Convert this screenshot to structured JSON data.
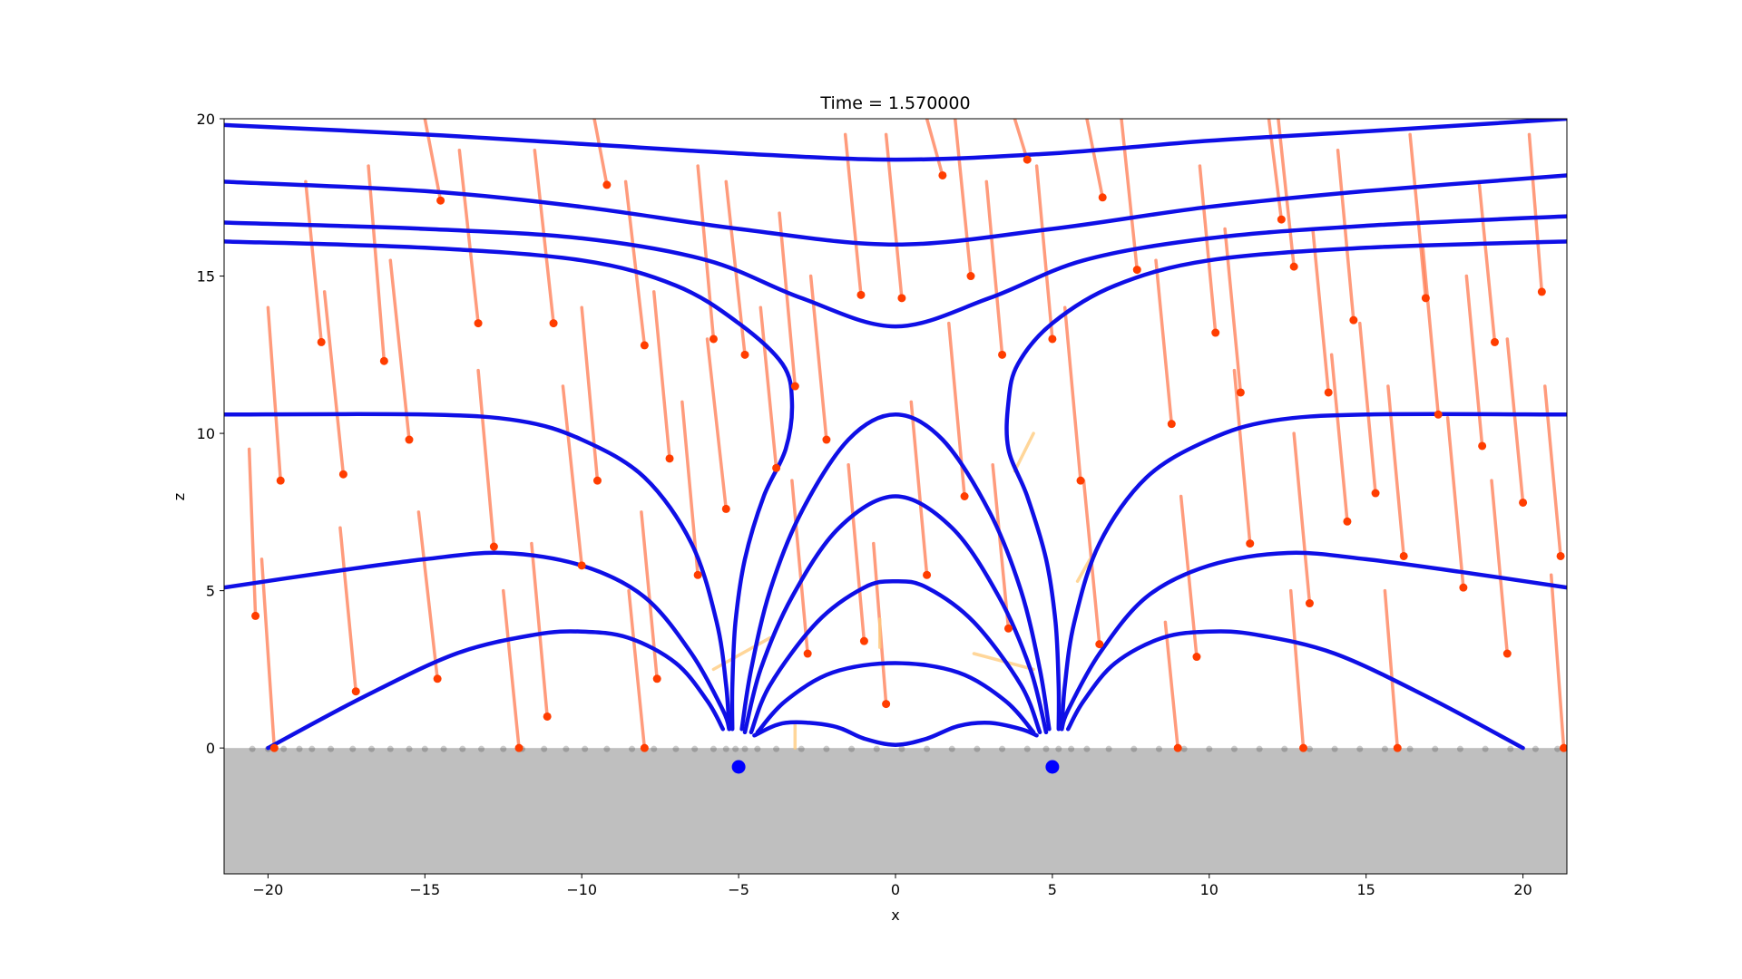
{
  "chart_data": {
    "type": "line",
    "title": "Time = 1.570000",
    "xlabel": "x",
    "ylabel": "z",
    "xlim": [
      -21.4,
      21.4
    ],
    "ylim": [
      -4,
      20
    ],
    "xticks": [
      -20,
      -15,
      -10,
      -5,
      0,
      5,
      10,
      15,
      20
    ],
    "yticks": [
      0,
      5,
      10,
      15,
      20
    ],
    "grid": false,
    "colors": {
      "field_line": "#0f0fe6",
      "particle_trail": "#ff7a50",
      "particle_head": "#ff3d00",
      "faint_trail": "#ffcc80",
      "ground": "#bfbfbf",
      "source": "#0000ff"
    },
    "ground": {
      "z_top": 0,
      "z_bottom": -4
    },
    "sources": [
      {
        "x": -5,
        "z": -0.6
      },
      {
        "x": 5,
        "z": -0.6
      }
    ],
    "field_lines": [
      {
        "points": [
          [
            -21.4,
            19.8
          ],
          [
            -15,
            19.5
          ],
          [
            -10,
            19.2
          ],
          [
            -5,
            18.9
          ],
          [
            0,
            18.7
          ],
          [
            5,
            18.9
          ],
          [
            10,
            19.3
          ],
          [
            15,
            19.6
          ],
          [
            21.4,
            20.0
          ]
        ]
      },
      {
        "points": [
          [
            -21.4,
            18.0
          ],
          [
            -15,
            17.7
          ],
          [
            -10,
            17.2
          ],
          [
            -5,
            16.5
          ],
          [
            0,
            16.0
          ],
          [
            5,
            16.5
          ],
          [
            10,
            17.2
          ],
          [
            15,
            17.7
          ],
          [
            21.4,
            18.2
          ]
        ]
      },
      {
        "points": [
          [
            -21.4,
            16.7
          ],
          [
            -15,
            16.5
          ],
          [
            -10,
            16.2
          ],
          [
            -6,
            15.5
          ],
          [
            -3,
            14.3
          ],
          [
            0,
            13.4
          ],
          [
            3,
            14.3
          ],
          [
            6,
            15.5
          ],
          [
            10,
            16.2
          ],
          [
            15,
            16.6
          ],
          [
            21.4,
            16.9
          ]
        ]
      },
      {
        "points": [
          [
            -21.4,
            16.1
          ],
          [
            -15,
            15.9
          ],
          [
            -10,
            15.5
          ],
          [
            -7,
            14.7
          ],
          [
            -5,
            13.5
          ],
          [
            -3.6,
            12.2
          ],
          [
            -3.3,
            11.0
          ],
          [
            -3.5,
            9.5
          ],
          [
            -4.2,
            8.0
          ],
          [
            -4.8,
            6.0
          ],
          [
            -5.1,
            4.0
          ],
          [
            -5.2,
            2.0
          ],
          [
            -5.2,
            0.6
          ]
        ]
      },
      {
        "points": [
          [
            5.2,
            0.6
          ],
          [
            5.2,
            2.0
          ],
          [
            5.1,
            4.0
          ],
          [
            4.8,
            6.0
          ],
          [
            4.2,
            8.0
          ],
          [
            3.6,
            9.5
          ],
          [
            3.6,
            11.0
          ],
          [
            3.9,
            12.2
          ],
          [
            5,
            13.5
          ],
          [
            7,
            14.7
          ],
          [
            10,
            15.5
          ],
          [
            15,
            15.9
          ],
          [
            21.4,
            16.1
          ]
        ]
      },
      {
        "points": [
          [
            -21.4,
            10.6
          ],
          [
            -15,
            10.6
          ],
          [
            -12,
            10.4
          ],
          [
            -10,
            9.8
          ],
          [
            -8,
            8.6
          ],
          [
            -6.5,
            6.5
          ],
          [
            -5.7,
            4.0
          ],
          [
            -5.4,
            2.0
          ],
          [
            -5.3,
            0.6
          ]
        ]
      },
      {
        "points": [
          [
            5.3,
            0.6
          ],
          [
            5.4,
            2.0
          ],
          [
            5.7,
            4.0
          ],
          [
            6.5,
            6.5
          ],
          [
            8,
            8.6
          ],
          [
            10,
            9.8
          ],
          [
            12,
            10.4
          ],
          [
            15,
            10.6
          ],
          [
            21.4,
            10.6
          ]
        ]
      },
      {
        "points": [
          [
            -4.9,
            0.6
          ],
          [
            -4.6,
            2.5
          ],
          [
            -4.0,
            5.0
          ],
          [
            -3.0,
            7.5
          ],
          [
            -1.5,
            9.8
          ],
          [
            0,
            10.6
          ],
          [
            1.5,
            9.8
          ],
          [
            3.0,
            7.5
          ],
          [
            4.0,
            5.0
          ],
          [
            4.6,
            2.5
          ],
          [
            4.9,
            0.6
          ]
        ]
      },
      {
        "points": [
          [
            -4.8,
            0.5
          ],
          [
            -4.3,
            2.5
          ],
          [
            -3.3,
            4.8
          ],
          [
            -1.8,
            7.0
          ],
          [
            0,
            8.0
          ],
          [
            1.8,
            7.0
          ],
          [
            3.3,
            4.8
          ],
          [
            4.3,
            2.5
          ],
          [
            4.8,
            0.5
          ]
        ]
      },
      {
        "points": [
          [
            -4.6,
            0.5
          ],
          [
            -4.0,
            2.0
          ],
          [
            -2.5,
            4.0
          ],
          [
            -1,
            5.1
          ],
          [
            0,
            5.3
          ],
          [
            1,
            5.1
          ],
          [
            2.5,
            4.0
          ],
          [
            4.0,
            2.0
          ],
          [
            4.6,
            0.5
          ]
        ]
      },
      {
        "points": [
          [
            -4.4,
            0.5
          ],
          [
            -3.5,
            1.5
          ],
          [
            -2,
            2.4
          ],
          [
            0,
            2.7
          ],
          [
            2,
            2.4
          ],
          [
            3.5,
            1.5
          ],
          [
            4.4,
            0.5
          ]
        ]
      },
      {
        "points": [
          [
            -4.5,
            0.4
          ],
          [
            -3.5,
            0.8
          ],
          [
            -2,
            0.7
          ],
          [
            -1,
            0.3
          ],
          [
            0,
            0.1
          ],
          [
            1,
            0.3
          ],
          [
            2,
            0.7
          ],
          [
            3,
            0.8
          ],
          [
            4,
            0.6
          ],
          [
            4.5,
            0.4
          ]
        ]
      },
      {
        "points": [
          [
            -21.4,
            5.1
          ],
          [
            -18,
            5.6
          ],
          [
            -15,
            6.0
          ],
          [
            -12.5,
            6.2
          ],
          [
            -10,
            5.8
          ],
          [
            -8,
            4.8
          ],
          [
            -6.5,
            3.0
          ],
          [
            -5.5,
            1.2
          ],
          [
            -5.3,
            0.6
          ]
        ]
      },
      {
        "points": [
          [
            5.3,
            0.6
          ],
          [
            5.5,
            1.2
          ],
          [
            6.5,
            3.0
          ],
          [
            8,
            4.8
          ],
          [
            10,
            5.8
          ],
          [
            12.5,
            6.2
          ],
          [
            15,
            6.0
          ],
          [
            18,
            5.6
          ],
          [
            21.4,
            5.1
          ]
        ]
      },
      {
        "points": [
          [
            -20,
            0
          ],
          [
            -17,
            1.6
          ],
          [
            -14,
            3.0
          ],
          [
            -11.5,
            3.6
          ],
          [
            -10,
            3.7
          ],
          [
            -8.5,
            3.5
          ],
          [
            -7,
            2.7
          ],
          [
            -6,
            1.5
          ],
          [
            -5.5,
            0.6
          ]
        ]
      },
      {
        "points": [
          [
            5.5,
            0.6
          ],
          [
            6,
            1.5
          ],
          [
            7,
            2.7
          ],
          [
            8.5,
            3.5
          ],
          [
            10,
            3.7
          ],
          [
            11.5,
            3.6
          ],
          [
            14,
            3.0
          ],
          [
            17,
            1.6
          ],
          [
            20,
            0
          ]
        ]
      }
    ],
    "particle_trails": [
      {
        "x": -20.4,
        "z": 4.2,
        "x0": -20.6,
        "z0": 9.5
      },
      {
        "x": -19.6,
        "z": 8.5,
        "x0": -20.0,
        "z0": 14.0
      },
      {
        "x": -19.8,
        "z": 0.0,
        "x0": -20.2,
        "z0": 6.0
      },
      {
        "x": -18.3,
        "z": 12.9,
        "x0": -18.8,
        "z0": 18.0
      },
      {
        "x": -17.6,
        "z": 8.7,
        "x0": -18.2,
        "z0": 14.5
      },
      {
        "x": -17.2,
        "z": 1.8,
        "x0": -17.7,
        "z0": 7.0
      },
      {
        "x": -16.3,
        "z": 12.3,
        "x0": -16.8,
        "z0": 18.5
      },
      {
        "x": -15.5,
        "z": 9.8,
        "x0": -16.1,
        "z0": 15.5
      },
      {
        "x": -14.6,
        "z": 2.2,
        "x0": -15.2,
        "z0": 7.5
      },
      {
        "x": -14.5,
        "z": 17.4,
        "x0": -15.0,
        "z0": 20.0
      },
      {
        "x": -13.3,
        "z": 13.5,
        "x0": -13.9,
        "z0": 19.0
      },
      {
        "x": -12.8,
        "z": 6.4,
        "x0": -13.3,
        "z0": 12.0
      },
      {
        "x": -11.1,
        "z": 1.0,
        "x0": -11.6,
        "z0": 6.5
      },
      {
        "x": -10.9,
        "z": 13.5,
        "x0": -11.5,
        "z0": 19.0
      },
      {
        "x": -10.0,
        "z": 5.8,
        "x0": -10.6,
        "z0": 11.5
      },
      {
        "x": -9.5,
        "z": 8.5,
        "x0": -10.0,
        "z0": 14.0
      },
      {
        "x": -9.2,
        "z": 17.9,
        "x0": -9.6,
        "z0": 20.0
      },
      {
        "x": -8.0,
        "z": 12.8,
        "x0": -8.6,
        "z0": 18.0
      },
      {
        "x": -7.6,
        "z": 2.2,
        "x0": -8.1,
        "z0": 7.5
      },
      {
        "x": -7.2,
        "z": 9.2,
        "x0": -7.7,
        "z0": 14.5
      },
      {
        "x": -6.3,
        "z": 5.5,
        "x0": -6.8,
        "z0": 11.0
      },
      {
        "x": -5.8,
        "z": 13.0,
        "x0": -6.3,
        "z0": 18.5
      },
      {
        "x": -5.4,
        "z": 7.6,
        "x0": -6.0,
        "z0": 13.0
      },
      {
        "x": -4.8,
        "z": 12.5,
        "x0": -5.4,
        "z0": 18.0
      },
      {
        "x": -3.8,
        "z": 8.9,
        "x0": -4.3,
        "z0": 14.0
      },
      {
        "x": -3.2,
        "z": 11.5,
        "x0": -3.7,
        "z0": 17.0
      },
      {
        "x": -2.2,
        "z": 9.8,
        "x0": -2.7,
        "z0": 15.0
      },
      {
        "x": -2.8,
        "z": 3.0,
        "x0": -3.3,
        "z0": 8.5
      },
      {
        "x": -1.1,
        "z": 14.4,
        "x0": -1.6,
        "z0": 19.5
      },
      {
        "x": -1.0,
        "z": 3.4,
        "x0": -1.5,
        "z0": 9.0
      },
      {
        "x": -0.3,
        "z": 1.4,
        "x0": -0.7,
        "z0": 6.5
      },
      {
        "x": 0.2,
        "z": 14.3,
        "x0": -0.3,
        "z0": 19.5
      },
      {
        "x": 1.0,
        "z": 5.5,
        "x0": 0.5,
        "z0": 11.0
      },
      {
        "x": 1.5,
        "z": 18.2,
        "x0": 1.0,
        "z0": 20.0
      },
      {
        "x": 2.4,
        "z": 15.0,
        "x0": 1.9,
        "z0": 20.0
      },
      {
        "x": 2.2,
        "z": 8.0,
        "x0": 1.7,
        "z0": 13.5
      },
      {
        "x": 3.4,
        "z": 12.5,
        "x0": 2.9,
        "z0": 18.0
      },
      {
        "x": 4.2,
        "z": 18.7,
        "x0": 3.8,
        "z0": 20.0
      },
      {
        "x": 3.6,
        "z": 3.8,
        "x0": 3.1,
        "z0": 9.0
      },
      {
        "x": 5.0,
        "z": 13.0,
        "x0": 4.5,
        "z0": 18.5
      },
      {
        "x": 5.9,
        "z": 8.5,
        "x0": 5.4,
        "z0": 14.0
      },
      {
        "x": 6.5,
        "z": 3.3,
        "x0": 6.0,
        "z0": 8.5
      },
      {
        "x": 6.6,
        "z": 17.5,
        "x0": 6.1,
        "z0": 20.0
      },
      {
        "x": 7.7,
        "z": 15.2,
        "x0": 7.2,
        "z0": 20.0
      },
      {
        "x": 8.8,
        "z": 10.3,
        "x0": 8.3,
        "z0": 15.5
      },
      {
        "x": 9.6,
        "z": 2.9,
        "x0": 9.1,
        "z0": 8.0
      },
      {
        "x": 10.2,
        "z": 13.2,
        "x0": 9.7,
        "z0": 18.5
      },
      {
        "x": 11.0,
        "z": 11.3,
        "x0": 10.5,
        "z0": 16.5
      },
      {
        "x": 11.3,
        "z": 6.5,
        "x0": 10.8,
        "z0": 12.0
      },
      {
        "x": 12.3,
        "z": 16.8,
        "x0": 11.9,
        "z0": 20.0
      },
      {
        "x": 12.7,
        "z": 15.3,
        "x0": 12.2,
        "z0": 20.0
      },
      {
        "x": 13.2,
        "z": 4.6,
        "x0": 12.7,
        "z0": 10.0
      },
      {
        "x": 13.8,
        "z": 11.3,
        "x0": 13.3,
        "z0": 16.5
      },
      {
        "x": 14.4,
        "z": 7.2,
        "x0": 13.9,
        "z0": 12.5
      },
      {
        "x": 14.6,
        "z": 13.6,
        "x0": 14.1,
        "z0": 19.0
      },
      {
        "x": 15.3,
        "z": 8.1,
        "x0": 14.8,
        "z0": 13.5
      },
      {
        "x": 16.2,
        "z": 6.1,
        "x0": 15.7,
        "z0": 11.5
      },
      {
        "x": 16.9,
        "z": 14.3,
        "x0": 16.4,
        "z0": 19.5
      },
      {
        "x": 17.3,
        "z": 10.6,
        "x0": 16.8,
        "z0": 16.0
      },
      {
        "x": 18.1,
        "z": 5.1,
        "x0": 17.6,
        "z0": 10.5
      },
      {
        "x": 18.7,
        "z": 9.6,
        "x0": 18.2,
        "z0": 15.0
      },
      {
        "x": 19.1,
        "z": 12.9,
        "x0": 18.6,
        "z0": 18.0
      },
      {
        "x": 19.5,
        "z": 3.0,
        "x0": 19.0,
        "z0": 8.5
      },
      {
        "x": 20.0,
        "z": 7.8,
        "x0": 19.5,
        "z0": 13.0
      },
      {
        "x": 20.6,
        "z": 14.5,
        "x0": 20.2,
        "z0": 19.5
      },
      {
        "x": 21.2,
        "z": 6.1,
        "x0": 20.7,
        "z0": 11.5
      },
      {
        "x": 21.3,
        "z": 0.0,
        "x0": 20.9,
        "z0": 5.5
      },
      {
        "x": -12.0,
        "z": 0.0,
        "x0": -12.5,
        "z0": 5.0
      },
      {
        "x": -8.0,
        "z": 0.0,
        "x0": -8.5,
        "z0": 5.0
      },
      {
        "x": 9.0,
        "z": 0.0,
        "x0": 8.6,
        "z0": 4.0
      },
      {
        "x": 13.0,
        "z": 0.0,
        "x0": 12.6,
        "z0": 5.0
      },
      {
        "x": 16.0,
        "z": 0.0,
        "x0": 15.6,
        "z0": 5.0
      }
    ],
    "faint_trails": [
      {
        "points": [
          [
            -3.2,
            0.0
          ],
          [
            -3.2,
            0.8
          ]
        ]
      },
      {
        "points": [
          [
            -0.5,
            4.1
          ],
          [
            -0.5,
            3.2
          ]
        ]
      },
      {
        "points": [
          [
            4.4,
            10.0
          ],
          [
            3.8,
            8.8
          ]
        ]
      },
      {
        "points": [
          [
            6.2,
            6.0
          ],
          [
            5.8,
            5.3
          ]
        ]
      },
      {
        "points": [
          [
            2.5,
            3.0
          ],
          [
            4.4,
            2.5
          ]
        ]
      },
      {
        "points": [
          [
            -5.8,
            2.5
          ],
          [
            -4.0,
            3.5
          ]
        ]
      }
    ],
    "ground_dots_x": [
      -20.5,
      -20.0,
      -19.5,
      -19.0,
      -18.6,
      -18.0,
      -17.3,
      -16.7,
      -16.1,
      -15.5,
      -15.0,
      -14.4,
      -13.8,
      -13.2,
      -12.5,
      -11.9,
      -11.2,
      -10.5,
      -9.9,
      -9.2,
      -8.4,
      -7.7,
      -7.0,
      -6.4,
      -5.8,
      -5.4,
      -5.1,
      -4.8,
      -4.4,
      -3.8,
      -3.0,
      -2.2,
      -1.4,
      -0.6,
      0.2,
      1.0,
      1.8,
      2.6,
      3.4,
      4.2,
      4.8,
      5.2,
      5.6,
      6.1,
      6.8,
      7.6,
      8.4,
      9.2,
      10.0,
      10.8,
      11.6,
      12.4,
      13.2,
      14.0,
      14.8,
      15.6,
      16.4,
      17.2,
      18.0,
      18.8,
      19.6,
      20.4,
      21.1
    ]
  }
}
